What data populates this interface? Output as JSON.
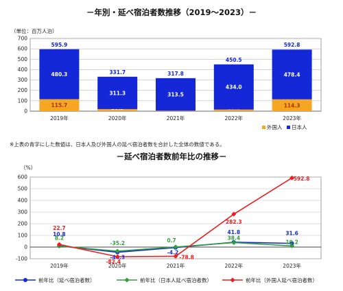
{
  "chart_data": [
    {
      "type": "bar",
      "title": "－年別・延べ宿泊者数推移（2019～2023）－",
      "unit_label": "（単位：百万人泊）",
      "categories": [
        "2019年",
        "2020年",
        "2021年",
        "2022年",
        "2023年"
      ],
      "ylim": [
        0,
        700
      ],
      "yticks": [
        "0",
        "100",
        "200",
        "300",
        "400",
        "500",
        "600",
        "700"
      ],
      "stacked": true,
      "series": [
        {
          "name": "外国人",
          "color": "#f5a623",
          "values": [
            115.7,
            20.3,
            4.3,
            16.5,
            114.3
          ],
          "labels": [
            "115.7",
            "20.3",
            "4.3",
            "16.5",
            "114.3"
          ]
        },
        {
          "name": "日本人",
          "color": "#1428d8",
          "values": [
            480.3,
            311.3,
            313.5,
            434.0,
            478.4
          ],
          "labels": [
            "480.3",
            "311.3",
            "313.5",
            "434.0",
            "478.4"
          ]
        }
      ],
      "totals": [
        595.9,
        331.7,
        317.8,
        450.5,
        592.8
      ],
      "total_labels": [
        "595.9",
        "331.7",
        "317.8",
        "450.5",
        "592.8"
      ],
      "grid": true,
      "legend": "bottom-right"
    },
    {
      "type": "line",
      "title": "－延べ宿泊者数前年比の推移－",
      "ylabel": "（%）",
      "categories": [
        "2019年",
        "2020年",
        "2021年",
        "2022年",
        "2023年"
      ],
      "ylim": [
        -100,
        600
      ],
      "yticks": [
        "-100",
        "0",
        "100",
        "200",
        "300",
        "400",
        "500",
        "600"
      ],
      "series": [
        {
          "name": "前年比（延べ宿泊者数）",
          "color": "#1428d8",
          "marker": "circle",
          "values": [
            10.8,
            -44.3,
            -4.2,
            41.8,
            31.6
          ],
          "labels": [
            "10.8",
            "-44.3",
            "-4.2",
            "41.8",
            "31.6"
          ]
        },
        {
          "name": "前年比（日本人延べ宿泊者数）",
          "color": "#2e9e3a",
          "marker": "diamond",
          "values": [
            8.2,
            -35.2,
            0.7,
            38.4,
            10.2
          ],
          "labels": [
            "8.2",
            "-35.2",
            "0.7",
            "38.4",
            "10.2"
          ]
        },
        {
          "name": "前年比（外国人延べ宿泊者数）",
          "color": "#ee1c1c",
          "marker": "diamond",
          "values": [
            22.7,
            -82.4,
            -78.8,
            282.3,
            592.8
          ],
          "labels": [
            "22.7",
            "-82.4",
            "-78.8",
            "282.3",
            "592.8"
          ]
        }
      ],
      "grid": true,
      "legend": "bottom"
    }
  ],
  "note": "※上表の青字にした数値は、日本人及び外国人の延べ宿泊者数を合計した全体の数値である。"
}
